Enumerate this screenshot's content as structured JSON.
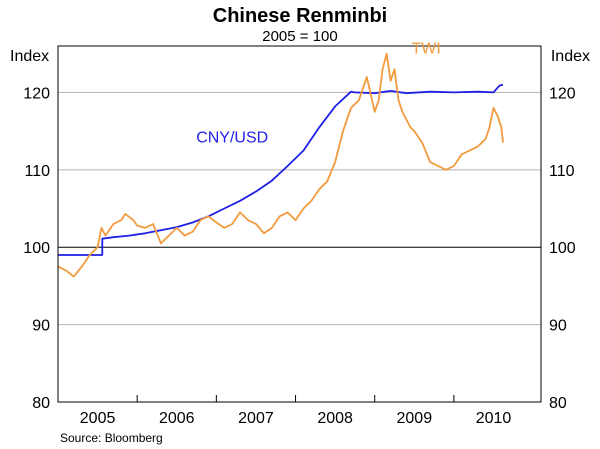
{
  "chart_data": {
    "type": "line",
    "title": "Chinese Renminbi",
    "subtitle": "2005 = 100",
    "ylabel_left": "Index",
    "ylabel_right": "Index",
    "ylim": [
      80,
      126
    ],
    "yticks": [
      80,
      90,
      100,
      110,
      120
    ],
    "xlim": [
      2004.5,
      2010.6
    ],
    "xticks": [
      {
        "label": "2005",
        "x": 2005.0
      },
      {
        "label": "2006",
        "x": 2006.0
      },
      {
        "label": "2007",
        "x": 2007.0
      },
      {
        "label": "2008",
        "x": 2008.0
      },
      {
        "label": "2009",
        "x": 2009.0
      },
      {
        "label": "2010",
        "x": 2010.0
      }
    ],
    "year_boundaries": [
      2005.5,
      2006.5,
      2007.5,
      2008.5,
      2009.5
    ],
    "reference_line": 100,
    "grid": false,
    "source": "Source: Bloomberg",
    "colors": {
      "cny_usd": "#1f1fe6",
      "twi": "#f29a3c"
    },
    "series": [
      {
        "name": "CNY/USD",
        "color": "#1f1fe6",
        "label_at": [
          2006.7,
          113.5
        ],
        "x": [
          2004.5,
          2005.06,
          2005.06,
          2005.2,
          2005.4,
          2005.6,
          2005.8,
          2006.0,
          2006.2,
          2006.4,
          2006.6,
          2006.8,
          2007.0,
          2007.2,
          2007.4,
          2007.6,
          2007.8,
          2008.0,
          2008.2,
          2008.25,
          2008.5,
          2008.7,
          2008.9,
          2009.2,
          2009.5,
          2009.8,
          2010.0,
          2010.05,
          2010.08,
          2010.12
        ],
        "y": [
          99.0,
          99.0,
          101.1,
          101.3,
          101.5,
          101.8,
          102.2,
          102.6,
          103.2,
          104.0,
          105.0,
          106.0,
          107.2,
          108.6,
          110.5,
          112.5,
          115.5,
          118.2,
          120.1,
          120.0,
          119.9,
          120.2,
          119.9,
          120.1,
          120.0,
          120.1,
          120.0,
          120.6,
          120.9,
          121.0
        ]
      },
      {
        "name": "TWI",
        "color": "#f29a3c",
        "label_at": [
          2009.15,
          125.0
        ],
        "x": [
          2004.5,
          2004.6,
          2004.7,
          2004.8,
          2004.9,
          2005.0,
          2005.05,
          2005.1,
          2005.2,
          2005.3,
          2005.35,
          2005.45,
          2005.5,
          2005.6,
          2005.7,
          2005.8,
          2005.9,
          2006.0,
          2006.1,
          2006.2,
          2006.3,
          2006.4,
          2006.5,
          2006.6,
          2006.7,
          2006.8,
          2006.9,
          2007.0,
          2007.1,
          2007.2,
          2007.3,
          2007.4,
          2007.5,
          2007.6,
          2007.7,
          2007.8,
          2007.9,
          2008.0,
          2008.1,
          2008.2,
          2008.3,
          2008.4,
          2008.5,
          2008.55,
          2008.6,
          2008.65,
          2008.7,
          2008.75,
          2008.8,
          2008.85,
          2008.9,
          2008.95,
          2009.0,
          2009.1,
          2009.2,
          2009.3,
          2009.4,
          2009.5,
          2009.6,
          2009.7,
          2009.8,
          2009.9,
          2009.95,
          2010.0,
          2010.05,
          2010.1,
          2010.12
        ],
        "y": [
          97.5,
          97.0,
          96.2,
          97.5,
          99.0,
          100.0,
          102.5,
          101.5,
          103.0,
          103.5,
          104.3,
          103.5,
          102.8,
          102.5,
          103.0,
          100.5,
          101.5,
          102.5,
          101.5,
          102.0,
          103.5,
          104.0,
          103.2,
          102.5,
          103.0,
          104.5,
          103.5,
          103.0,
          101.8,
          102.5,
          104.0,
          104.5,
          103.5,
          105.0,
          106.0,
          107.5,
          108.5,
          111.0,
          115.0,
          118.0,
          119.0,
          122.0,
          117.5,
          119.0,
          123.0,
          125.0,
          121.5,
          123.0,
          119.0,
          117.5,
          116.5,
          115.5,
          115.0,
          113.5,
          111.0,
          110.5,
          110.0,
          110.5,
          112.0,
          112.5,
          113.0,
          114.0,
          115.5,
          118.0,
          117.0,
          115.5,
          113.5
        ]
      }
    ]
  }
}
